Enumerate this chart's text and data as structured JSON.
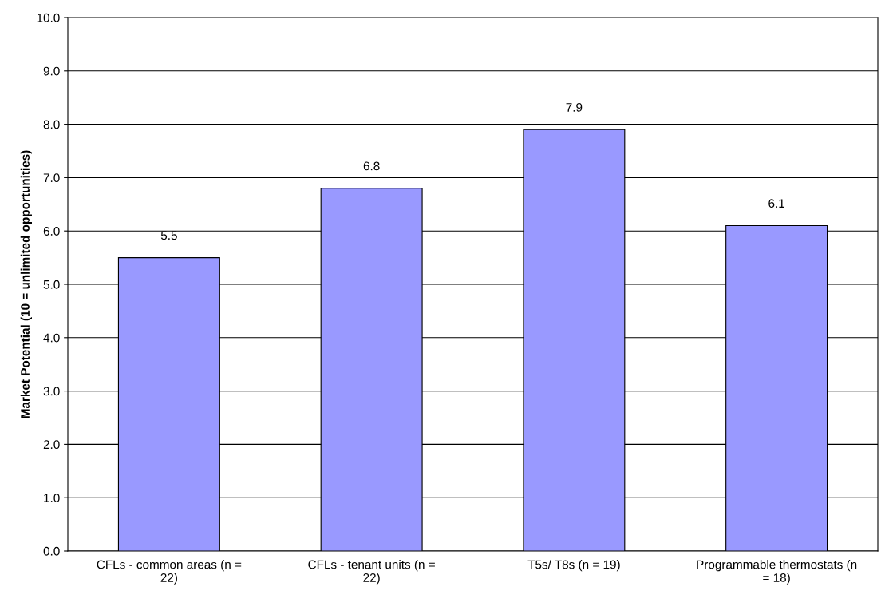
{
  "chart_data": {
    "type": "bar",
    "ylabel": "Market Potential (10 = unlimited opportunities)",
    "categories": [
      "CFLs - common areas (n = 22)",
      "CFLs - tenant units (n = 22)",
      "T5s/ T8s (n = 19)",
      "Programmable thermostats (n = 18)"
    ],
    "values": [
      5.5,
      6.8,
      7.9,
      6.1
    ],
    "color": "#9999ff",
    "data_labels": true,
    "grid": "y",
    "legend": false,
    "ylim": [
      0,
      10
    ],
    "yticks": [
      {
        "value": 0,
        "label": "0.0"
      },
      {
        "value": 1,
        "label": "1.0"
      },
      {
        "value": 2,
        "label": "2.0"
      },
      {
        "value": 3,
        "label": "3.0"
      },
      {
        "value": 4,
        "label": "4.0"
      },
      {
        "value": 5,
        "label": "5.0"
      },
      {
        "value": 6,
        "label": "6.0"
      },
      {
        "value": 7,
        "label": "7.0"
      },
      {
        "value": 8,
        "label": "8.0"
      },
      {
        "value": 9,
        "label": "9.0"
      },
      {
        "value": 10,
        "label": "10.0"
      }
    ]
  }
}
